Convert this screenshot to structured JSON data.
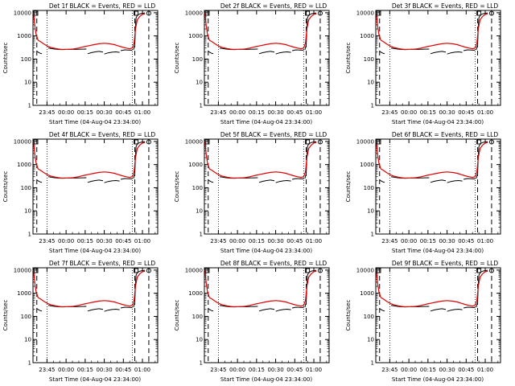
{
  "colors": {
    "background": "#ffffff",
    "axes": "#000000",
    "events": "#000000",
    "lld": "#dd0000"
  },
  "shared": {
    "xlabel": "Start Time (04-Aug-04 23:34:00)",
    "ylabel": "Counts/sec",
    "x_tick_labels": [
      "23:45",
      "00:00",
      "00:15",
      "00:30",
      "00:45",
      "01:00"
    ],
    "y_tick_labels": [
      "1",
      "10",
      "100",
      "1000",
      "10000"
    ],
    "x_tick_minutes": [
      11,
      26,
      41,
      56,
      71,
      86
    ],
    "xlim_minutes": [
      0,
      98
    ],
    "ylim_log10": [
      0,
      4.1
    ]
  },
  "panels": [
    {
      "title": "Det 1f BLACK = Events, RED = LLD"
    },
    {
      "title": "Det 2f BLACK = Events, RED = LLD"
    },
    {
      "title": "Det 3f BLACK = Events, RED = LLD"
    },
    {
      "title": "Det 4f BLACK = Events, RED = LLD"
    },
    {
      "title": "Det 5f BLACK = Events, RED = LLD"
    },
    {
      "title": "Det 6f BLACK = Events, RED = LLD"
    },
    {
      "title": "Det 7f BLACK = Events, RED = LLD"
    },
    {
      "title": "Det 8f BLACK = Events, RED = LLD"
    },
    {
      "title": "Det 9f BLACK = Events, RED = LLD"
    }
  ],
  "chart_data": {
    "type": "line",
    "y_scale": "log",
    "title": "Det Nf BLACK = Events, RED = LLD",
    "xlabel": "Start Time (04-Aug-04 23:34:00)",
    "ylabel": "Counts/sec",
    "ylim": [
      1,
      12000
    ],
    "x_unit": "minutes since 23:34:00",
    "dashed_markers_minutes": [
      3,
      80,
      91
    ],
    "dotted_markers_minutes": [
      11,
      78
    ],
    "series": [
      {
        "name": "RED = LLD",
        "color": "#dd0000",
        "x": [
          0,
          0.5,
          1.5,
          2.5,
          3,
          4,
          6,
          8,
          10,
          12,
          14,
          17,
          20,
          23,
          26,
          29,
          32,
          36,
          40,
          44,
          48,
          52,
          56,
          60,
          64,
          67,
          70,
          73,
          76,
          78,
          79.5,
          80.5,
          82,
          84,
          86,
          88
        ],
        "y": [
          10000,
          9000,
          2500,
          1100,
          950,
          650,
          560,
          470,
          400,
          350,
          320,
          290,
          270,
          260,
          265,
          265,
          275,
          300,
          340,
          380,
          420,
          460,
          480,
          460,
          420,
          370,
          330,
          300,
          280,
          300,
          500,
          2000,
          5000,
          7000,
          8500,
          9000
        ]
      },
      {
        "name": "BLACK = Events",
        "color": "#000000",
        "segments": [
          {
            "x": [
              3,
              4,
              5,
              6,
              7
            ],
            "y": [
              220,
              200,
              185,
              175,
              170
            ]
          },
          {
            "x": [
              12,
              14,
              17,
              20,
              23,
              26
            ],
            "y": [
              300,
              285,
              270,
              260,
              258,
              260
            ]
          },
          {
            "x": [
              27,
              30,
              33,
              36,
              39,
              42
            ],
            "y": [
              265,
              262,
              262,
              265,
              268,
              270
            ]
          },
          {
            "x": [
              43,
              46,
              49,
              52,
              55
            ],
            "y": [
              170,
              190,
              205,
              215,
              200
            ]
          },
          {
            "x": [
              56,
              59,
              62,
              65,
              68
            ],
            "y": [
              165,
              185,
              198,
              205,
              195
            ]
          },
          {
            "x": [
              69,
              72,
              75,
              78
            ],
            "y": [
              230,
              250,
              245,
              240
            ]
          },
          {
            "x": [
              79,
              80,
              80.6,
              81,
              82,
              84,
              86,
              88
            ],
            "y": [
              250,
              400,
              3000,
              6000,
              8000,
              9000,
              9500,
              9800
            ]
          }
        ]
      }
    ],
    "x_tick_labels": [
      "23:45",
      "00:00",
      "00:15",
      "00:30",
      "00:45",
      "01:00"
    ],
    "y_tick_labels": [
      "1",
      "10",
      "100",
      "1000",
      "10000"
    ],
    "annotations": [
      "square marker top-left",
      "square marker top-right",
      "circle marker top-right"
    ]
  }
}
